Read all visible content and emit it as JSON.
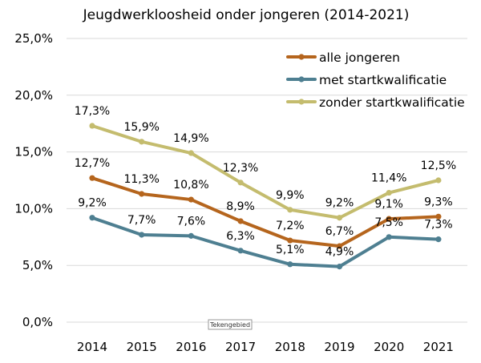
{
  "chart_data": {
    "type": "line",
    "title": "Jeugdwerkloosheid onder jongeren (2014-2021)",
    "xlabel": "",
    "ylabel": "",
    "categories": [
      "2014",
      "2015",
      "2016",
      "2017",
      "2018",
      "2019",
      "2020",
      "2021"
    ],
    "ylim": [
      0,
      25
    ],
    "yticks": [
      "0,0%",
      "5,0%",
      "10,0%",
      "15,0%",
      "20,0%",
      "25,0%"
    ],
    "grid": true,
    "legend_position": "top-right",
    "series": [
      {
        "name": "alle jongeren",
        "color": "#B5651D",
        "values": [
          12.7,
          11.3,
          10.8,
          8.9,
          7.2,
          6.7,
          9.1,
          9.3
        ],
        "labels": [
          "12,7%",
          "11,3%",
          "10,8%",
          "8,9%",
          "7,2%",
          "6,7%",
          "9,1%",
          "9,3%"
        ]
      },
      {
        "name": "met startkwalificatie",
        "color": "#4E7F91",
        "values": [
          9.2,
          7.7,
          7.6,
          6.3,
          5.1,
          4.9,
          7.5,
          7.3
        ],
        "labels": [
          "9,2%",
          "7,7%",
          "7,6%",
          "6,3%",
          "5,1%",
          "4,9%",
          "7,5%",
          "7,3%"
        ]
      },
      {
        "name": "zonder startkwalificatie",
        "color": "#C4BC6E",
        "values": [
          17.3,
          15.9,
          14.9,
          12.3,
          9.9,
          9.2,
          11.4,
          12.5
        ],
        "labels": [
          "17,3%",
          "15,9%",
          "14,9%",
          "12,3%",
          "9,9%",
          "9,2%",
          "11,4%",
          "12,5%"
        ]
      }
    ],
    "tooltip": "Tekengebied"
  }
}
